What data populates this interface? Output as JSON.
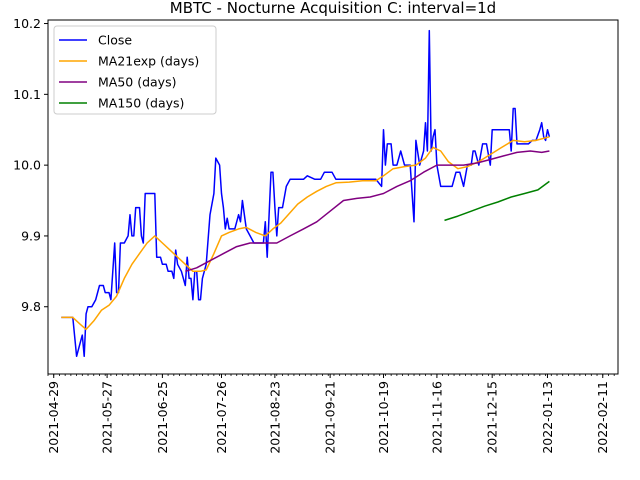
{
  "chart_data": {
    "type": "line",
    "title": "MBTC - Nocturne Acquisition C: interval=1d",
    "xlabel": "",
    "ylabel": "",
    "x_range": [
      "2021-04-26",
      "2022-02-19"
    ],
    "ylim": [
      9.705,
      10.205
    ],
    "y_ticks": [
      "9.8",
      "9.9",
      "10.0",
      "10.1",
      "10.2"
    ],
    "x_ticks": [
      "2021-04-29",
      "2021-05-27",
      "2021-06-25",
      "2021-07-26",
      "2021-08-23",
      "2021-09-21",
      "2021-10-19",
      "2021-11-16",
      "2021-12-15",
      "2022-01-13",
      "2022-02-11"
    ],
    "grid": false,
    "legend_position": "top-left",
    "colors": {
      "Close": "#0000ff",
      "MA21exp (days)": "#ffa500",
      "MA50 (days)": "#800080",
      "MA150 (days)": "#008000"
    },
    "series": [
      {
        "name": "Close",
        "points": [
          [
            "2021-05-03",
            9.785
          ],
          [
            "2021-05-06",
            9.785
          ],
          [
            "2021-05-09",
            9.785
          ],
          [
            "2021-05-11",
            9.73
          ],
          [
            "2021-05-13",
            9.75
          ],
          [
            "2021-05-14",
            9.76
          ],
          [
            "2021-05-15",
            9.73
          ],
          [
            "2021-05-16",
            9.79
          ],
          [
            "2021-05-17",
            9.8
          ],
          [
            "2021-05-19",
            9.8
          ],
          [
            "2021-05-21",
            9.81
          ],
          [
            "2021-05-23",
            9.83
          ],
          [
            "2021-05-25",
            9.83
          ],
          [
            "2021-05-26",
            9.82
          ],
          [
            "2021-05-28",
            9.82
          ],
          [
            "2021-05-29",
            9.81
          ],
          [
            "2021-05-31",
            9.89
          ],
          [
            "2021-06-01",
            9.82
          ],
          [
            "2021-06-02",
            9.82
          ],
          [
            "2021-06-03",
            9.89
          ],
          [
            "2021-06-05",
            9.89
          ],
          [
            "2021-06-07",
            9.9
          ],
          [
            "2021-06-08",
            9.93
          ],
          [
            "2021-06-09",
            9.9
          ],
          [
            "2021-06-10",
            9.9
          ],
          [
            "2021-06-11",
            9.94
          ],
          [
            "2021-06-13",
            9.94
          ],
          [
            "2021-06-14",
            9.9
          ],
          [
            "2021-06-15",
            9.89
          ],
          [
            "2021-06-16",
            9.96
          ],
          [
            "2021-06-19",
            9.96
          ],
          [
            "2021-06-21",
            9.96
          ],
          [
            "2021-06-22",
            9.87
          ],
          [
            "2021-06-24",
            9.87
          ],
          [
            "2021-06-25",
            9.86
          ],
          [
            "2021-06-27",
            9.86
          ],
          [
            "2021-06-28",
            9.85
          ],
          [
            "2021-06-30",
            9.85
          ],
          [
            "2021-07-01",
            9.84
          ],
          [
            "2021-07-02",
            9.88
          ],
          [
            "2021-07-03",
            9.86
          ],
          [
            "2021-07-05",
            9.85
          ],
          [
            "2021-07-07",
            9.83
          ],
          [
            "2021-07-08",
            9.87
          ],
          [
            "2021-07-09",
            9.84
          ],
          [
            "2021-07-10",
            9.84
          ],
          [
            "2021-07-11",
            9.81
          ],
          [
            "2021-07-12",
            9.85
          ],
          [
            "2021-07-13",
            9.85
          ],
          [
            "2021-07-14",
            9.81
          ],
          [
            "2021-07-15",
            9.81
          ],
          [
            "2021-07-16",
            9.84
          ],
          [
            "2021-07-18",
            9.86
          ],
          [
            "2021-07-20",
            9.93
          ],
          [
            "2021-07-22",
            9.96
          ],
          [
            "2021-07-23",
            10.01
          ],
          [
            "2021-07-25",
            10.0
          ],
          [
            "2021-07-26",
            9.96
          ],
          [
            "2021-07-27",
            9.94
          ],
          [
            "2021-07-28",
            9.91
          ],
          [
            "2021-07-29",
            9.925
          ],
          [
            "2021-07-30",
            9.91
          ],
          [
            "2021-08-02",
            9.91
          ],
          [
            "2021-08-04",
            9.93
          ],
          [
            "2021-08-05",
            9.92
          ],
          [
            "2021-08-06",
            9.95
          ],
          [
            "2021-08-08",
            9.91
          ],
          [
            "2021-08-10",
            9.9
          ],
          [
            "2021-08-12",
            9.89
          ],
          [
            "2021-08-15",
            9.89
          ],
          [
            "2021-08-17",
            9.89
          ],
          [
            "2021-08-18",
            9.92
          ],
          [
            "2021-08-19",
            9.87
          ],
          [
            "2021-08-20",
            9.93
          ],
          [
            "2021-08-21",
            9.99
          ],
          [
            "2021-08-22",
            9.99
          ],
          [
            "2021-08-23",
            9.94
          ],
          [
            "2021-08-24",
            9.9
          ],
          [
            "2021-08-25",
            9.94
          ],
          [
            "2021-08-27",
            9.94
          ],
          [
            "2021-08-29",
            9.97
          ],
          [
            "2021-08-31",
            9.98
          ],
          [
            "2021-09-03",
            9.98
          ],
          [
            "2021-09-07",
            9.98
          ],
          [
            "2021-09-09",
            9.985
          ],
          [
            "2021-09-13",
            9.98
          ],
          [
            "2021-09-16",
            9.98
          ],
          [
            "2021-09-18",
            9.99
          ],
          [
            "2021-09-22",
            9.99
          ],
          [
            "2021-09-24",
            9.98
          ],
          [
            "2021-09-28",
            9.98
          ],
          [
            "2021-10-02",
            9.98
          ],
          [
            "2021-10-06",
            9.98
          ],
          [
            "2021-10-08",
            9.98
          ],
          [
            "2021-10-12",
            9.98
          ],
          [
            "2021-10-15",
            9.98
          ],
          [
            "2021-10-18",
            9.97
          ],
          [
            "2021-10-19",
            10.05
          ],
          [
            "2021-10-20",
            10.0
          ],
          [
            "2021-10-21",
            10.03
          ],
          [
            "2021-10-23",
            10.03
          ],
          [
            "2021-10-24",
            10.0
          ],
          [
            "2021-10-26",
            10.0
          ],
          [
            "2021-10-28",
            10.02
          ],
          [
            "2021-10-30",
            10.0
          ],
          [
            "2021-11-01",
            10.0
          ],
          [
            "2021-11-02",
            10.0
          ],
          [
            "2021-11-04",
            9.92
          ],
          [
            "2021-11-05",
            10.035
          ],
          [
            "2021-11-07",
            10.0
          ],
          [
            "2021-11-08",
            10.01
          ],
          [
            "2021-11-09",
            10.02
          ],
          [
            "2021-11-10",
            10.06
          ],
          [
            "2021-11-11",
            10.02
          ],
          [
            "2021-11-12",
            10.19
          ],
          [
            "2021-11-13",
            10.02
          ],
          [
            "2021-11-14",
            10.04
          ],
          [
            "2021-11-15",
            10.05
          ],
          [
            "2021-11-16",
            10.0
          ],
          [
            "2021-11-18",
            9.97
          ],
          [
            "2021-11-21",
            9.97
          ],
          [
            "2021-11-24",
            9.97
          ],
          [
            "2021-11-26",
            9.99
          ],
          [
            "2021-11-28",
            9.99
          ],
          [
            "2021-11-30",
            9.97
          ],
          [
            "2021-12-02",
            10.0
          ],
          [
            "2021-12-04",
            10.0
          ],
          [
            "2021-12-05",
            10.02
          ],
          [
            "2021-12-06",
            10.02
          ],
          [
            "2021-12-08",
            10.0
          ],
          [
            "2021-12-10",
            10.03
          ],
          [
            "2021-12-12",
            10.03
          ],
          [
            "2021-12-14",
            10.0
          ],
          [
            "2021-12-15",
            10.05
          ],
          [
            "2021-12-18",
            10.05
          ],
          [
            "2021-12-21",
            10.05
          ],
          [
            "2021-12-24",
            10.05
          ],
          [
            "2021-12-25",
            10.02
          ],
          [
            "2021-12-26",
            10.08
          ],
          [
            "2021-12-27",
            10.08
          ],
          [
            "2021-12-28",
            10.03
          ],
          [
            "2021-12-30",
            10.03
          ],
          [
            "2022-01-01",
            10.03
          ],
          [
            "2022-01-03",
            10.03
          ],
          [
            "2022-01-05",
            10.035
          ],
          [
            "2022-01-07",
            10.035
          ],
          [
            "2022-01-09",
            10.05
          ],
          [
            "2022-01-10",
            10.06
          ],
          [
            "2022-01-11",
            10.04
          ],
          [
            "2022-01-12",
            10.035
          ],
          [
            "2022-01-13",
            10.05
          ],
          [
            "2022-01-14",
            10.04
          ]
        ]
      },
      {
        "name": "MA21exp (days)",
        "points": [
          [
            "2021-05-03",
            9.785
          ],
          [
            "2021-05-09",
            9.785
          ],
          [
            "2021-05-13",
            9.775
          ],
          [
            "2021-05-16",
            9.768
          ],
          [
            "2021-05-20",
            9.78
          ],
          [
            "2021-05-24",
            9.795
          ],
          [
            "2021-05-28",
            9.802
          ],
          [
            "2021-06-01",
            9.815
          ],
          [
            "2021-06-05",
            9.84
          ],
          [
            "2021-06-09",
            9.86
          ],
          [
            "2021-06-13",
            9.875
          ],
          [
            "2021-06-17",
            9.89
          ],
          [
            "2021-06-21",
            9.9
          ],
          [
            "2021-06-25",
            9.89
          ],
          [
            "2021-06-29",
            9.88
          ],
          [
            "2021-07-03",
            9.87
          ],
          [
            "2021-07-07",
            9.86
          ],
          [
            "2021-07-11",
            9.85
          ],
          [
            "2021-07-15",
            9.85
          ],
          [
            "2021-07-18",
            9.852
          ],
          [
            "2021-07-22",
            9.875
          ],
          [
            "2021-07-26",
            9.9
          ],
          [
            "2021-07-30",
            9.905
          ],
          [
            "2021-08-04",
            9.91
          ],
          [
            "2021-08-08",
            9.912
          ],
          [
            "2021-08-13",
            9.905
          ],
          [
            "2021-08-18",
            9.9
          ],
          [
            "2021-08-22",
            9.91
          ],
          [
            "2021-08-26",
            9.918
          ],
          [
            "2021-08-30",
            9.93
          ],
          [
            "2021-09-04",
            9.945
          ],
          [
            "2021-09-09",
            9.955
          ],
          [
            "2021-09-14",
            9.963
          ],
          [
            "2021-09-19",
            9.97
          ],
          [
            "2021-09-24",
            9.975
          ],
          [
            "2021-10-01",
            9.976
          ],
          [
            "2021-10-08",
            9.978
          ],
          [
            "2021-10-15",
            9.978
          ],
          [
            "2021-10-19",
            9.985
          ],
          [
            "2021-10-24",
            9.995
          ],
          [
            "2021-10-30",
            9.998
          ],
          [
            "2021-11-05",
            10.0
          ],
          [
            "2021-11-10",
            10.01
          ],
          [
            "2021-11-14",
            10.025
          ],
          [
            "2021-11-18",
            10.02
          ],
          [
            "2021-11-22",
            10.005
          ],
          [
            "2021-11-27",
            9.995
          ],
          [
            "2021-12-02",
            9.998
          ],
          [
            "2021-12-08",
            10.005
          ],
          [
            "2021-12-14",
            10.015
          ],
          [
            "2021-12-20",
            10.025
          ],
          [
            "2021-12-26",
            10.035
          ],
          [
            "2022-01-01",
            10.033
          ],
          [
            "2022-01-07",
            10.035
          ],
          [
            "2022-01-14",
            10.04
          ]
        ]
      },
      {
        "name": "MA50 (days)",
        "points": [
          [
            "2021-07-07",
            9.85
          ],
          [
            "2021-07-13",
            9.855
          ],
          [
            "2021-07-20",
            9.865
          ],
          [
            "2021-07-27",
            9.875
          ],
          [
            "2021-08-03",
            9.885
          ],
          [
            "2021-08-10",
            9.89
          ],
          [
            "2021-08-17",
            9.89
          ],
          [
            "2021-08-24",
            9.89
          ],
          [
            "2021-08-31",
            9.9
          ],
          [
            "2021-09-07",
            9.91
          ],
          [
            "2021-09-14",
            9.92
          ],
          [
            "2021-09-21",
            9.935
          ],
          [
            "2021-09-28",
            9.95
          ],
          [
            "2021-10-05",
            9.953
          ],
          [
            "2021-10-12",
            9.955
          ],
          [
            "2021-10-19",
            9.96
          ],
          [
            "2021-10-26",
            9.97
          ],
          [
            "2021-11-02",
            9.978
          ],
          [
            "2021-11-09",
            9.99
          ],
          [
            "2021-11-16",
            10.0
          ],
          [
            "2021-11-23",
            10.0
          ],
          [
            "2021-11-30",
            10.0
          ],
          [
            "2021-12-07",
            10.003
          ],
          [
            "2021-12-14",
            10.008
          ],
          [
            "2021-12-21",
            10.013
          ],
          [
            "2021-12-28",
            10.018
          ],
          [
            "2022-01-04",
            10.02
          ],
          [
            "2022-01-10",
            10.018
          ],
          [
            "2022-01-14",
            10.02
          ]
        ]
      },
      {
        "name": "MA150 (days)",
        "points": [
          [
            "2021-11-20",
            9.922
          ],
          [
            "2021-11-27",
            9.928
          ],
          [
            "2021-12-04",
            9.935
          ],
          [
            "2021-12-11",
            9.942
          ],
          [
            "2021-12-18",
            9.948
          ],
          [
            "2021-12-25",
            9.955
          ],
          [
            "2022-01-01",
            9.96
          ],
          [
            "2022-01-08",
            9.965
          ],
          [
            "2022-01-14",
            9.977
          ]
        ]
      }
    ]
  }
}
